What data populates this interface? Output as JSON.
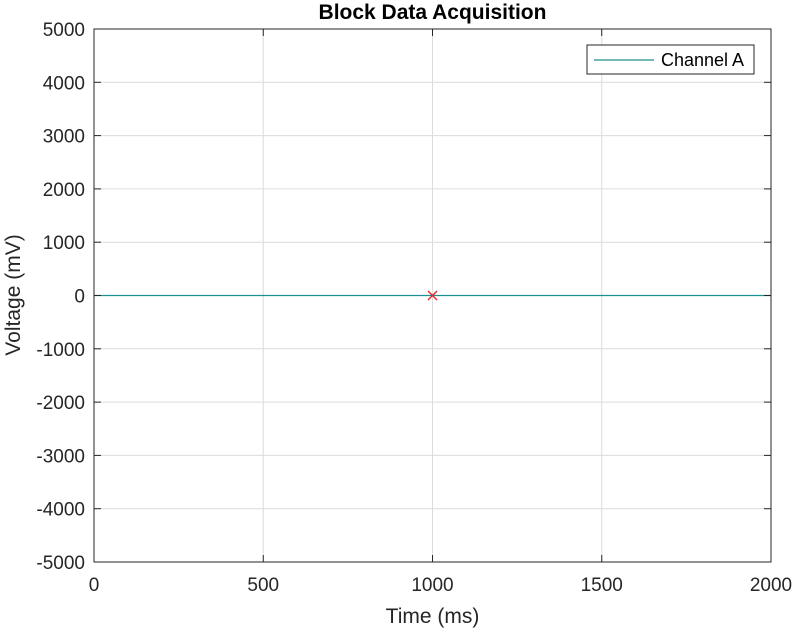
{
  "chart_data": {
    "type": "line",
    "title": "Block Data Acquisition",
    "xlabel": "Time (ms)",
    "ylabel": "Voltage (mV)",
    "xlim": [
      0,
      2000
    ],
    "ylim": [
      -5000,
      5000
    ],
    "xticks": [
      0,
      500,
      1000,
      1500,
      2000
    ],
    "yticks": [
      -5000,
      -4000,
      -3000,
      -2000,
      -1000,
      0,
      1000,
      2000,
      3000,
      4000,
      5000
    ],
    "grid": true,
    "legend": {
      "placement": "top-right"
    },
    "series": [
      {
        "name": "Channel A",
        "color": "#1f8f8f",
        "x": [
          0,
          250,
          500,
          750,
          1000,
          1250,
          1500,
          1750,
          2000
        ],
        "y": [
          0,
          0,
          0,
          0,
          0,
          0,
          0,
          0,
          0
        ]
      }
    ],
    "markers": [
      {
        "x": 1000,
        "y": 0,
        "symbol": "x",
        "color": "#e8202a"
      }
    ]
  }
}
